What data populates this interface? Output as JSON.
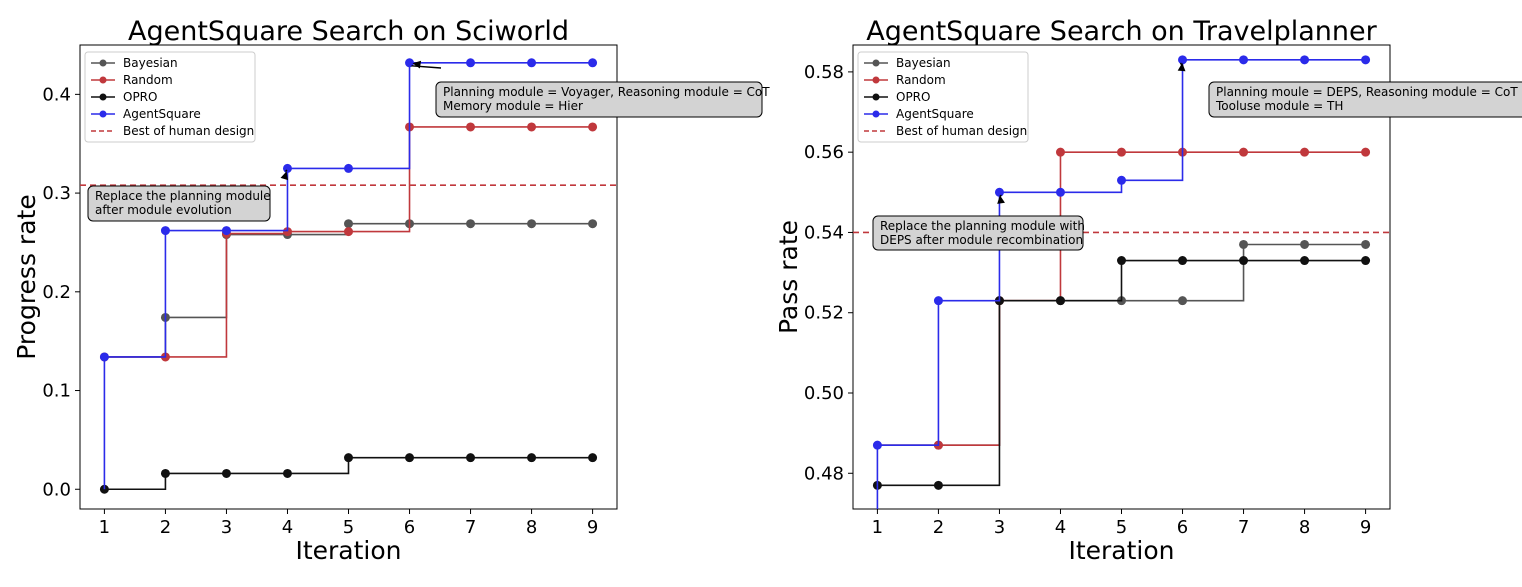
{
  "chart_data": [
    {
      "type": "line",
      "title": "AgentSquare Search on Sciworld",
      "xlabel": "Iteration",
      "ylabel": "Progress rate",
      "xlim": [
        0.6,
        9.4
      ],
      "ylim": [
        -0.02,
        0.45
      ],
      "xticks": [
        "1",
        "2",
        "3",
        "4",
        "5",
        "6",
        "7",
        "8",
        "9"
      ],
      "xtick_values": [
        1,
        2,
        3,
        4,
        5,
        6,
        7,
        8,
        9
      ],
      "yticks": [
        "0.0",
        "0.1",
        "0.2",
        "0.3",
        "0.4"
      ],
      "ytick_values": [
        0.0,
        0.1,
        0.2,
        0.3,
        0.4
      ],
      "grid": false,
      "legend_position": "top-left",
      "series": [
        {
          "name": "Bayesian",
          "color": "#555555",
          "x": [
            2,
            3,
            4,
            5,
            6,
            7,
            8,
            9
          ],
          "y": [
            0.174,
            0.258,
            0.258,
            0.269,
            0.269,
            0.269,
            0.269,
            0.269
          ],
          "step_from": [
            1,
            0.134
          ]
        },
        {
          "name": "Random",
          "color": "#c0383c",
          "x": [
            1,
            2,
            3,
            4,
            5,
            6,
            7,
            8,
            9
          ],
          "y": [
            0.134,
            0.134,
            0.259,
            0.261,
            0.261,
            0.367,
            0.367,
            0.367,
            0.367
          ]
        },
        {
          "name": "OPRO",
          "color": "#111111",
          "x": [
            1,
            2,
            3,
            4,
            5,
            6,
            7,
            8,
            9
          ],
          "y": [
            0.0,
            0.016,
            0.016,
            0.016,
            0.032,
            0.032,
            0.032,
            0.032,
            0.032
          ]
        },
        {
          "name": "AgentSquare",
          "color": "#2b2bea",
          "x": [
            1,
            2,
            3,
            4,
            5,
            6,
            7,
            8,
            9
          ],
          "y": [
            0.134,
            0.262,
            0.262,
            0.325,
            0.325,
            0.432,
            0.432,
            0.432,
            0.432
          ],
          "step_from": [
            1,
            0.0
          ]
        }
      ],
      "reference_line": {
        "name": "Best of human design",
        "value": 0.308,
        "color": "#c0383c"
      },
      "annotations": [
        {
          "lines": [
            "Planning module = Voyager, Reasoning module = CoT",
            "Memory module = Hier"
          ],
          "point": [
            6,
            0.432
          ]
        },
        {
          "lines": [
            "Replace the planning module",
            "after module evolution"
          ],
          "point": [
            4,
            0.325
          ]
        }
      ]
    },
    {
      "type": "line",
      "title": "AgentSquare Search on Travelplanner",
      "xlabel": "Iteration",
      "ylabel": "Pass rate",
      "xlim": [
        0.6,
        9.4
      ],
      "ylim": [
        0.4711,
        0.5867
      ],
      "xticks": [
        "1",
        "2",
        "3",
        "4",
        "5",
        "6",
        "7",
        "8",
        "9"
      ],
      "xtick_values": [
        1,
        2,
        3,
        4,
        5,
        6,
        7,
        8,
        9
      ],
      "yticks": [
        "0.48",
        "0.50",
        "0.52",
        "0.54",
        "0.56",
        "0.58"
      ],
      "ytick_values": [
        0.48,
        0.5,
        0.52,
        0.54,
        0.56,
        0.58
      ],
      "grid": false,
      "legend_position": "top-left",
      "series": [
        {
          "name": "Bayesian",
          "color": "#555555",
          "x": [
            2,
            3,
            4,
            5,
            6,
            7,
            8,
            9
          ],
          "y": [
            0.487,
            0.523,
            0.523,
            0.523,
            0.523,
            0.537,
            0.537,
            0.537
          ],
          "step_from": [
            1,
            0.487
          ]
        },
        {
          "name": "Random",
          "color": "#c0383c",
          "x": [
            2,
            3,
            4,
            5,
            6,
            7,
            8,
            9
          ],
          "y": [
            0.487,
            0.523,
            0.56,
            0.56,
            0.56,
            0.56,
            0.56,
            0.56
          ],
          "step_from": [
            1,
            0.487
          ]
        },
        {
          "name": "OPRO",
          "color": "#111111",
          "x": [
            1,
            2,
            3,
            4,
            5,
            6,
            7,
            8,
            9
          ],
          "y": [
            0.477,
            0.477,
            0.523,
            0.523,
            0.533,
            0.533,
            0.533,
            0.533,
            0.533
          ]
        },
        {
          "name": "AgentSquare",
          "color": "#2b2bea",
          "x": [
            1,
            2,
            3,
            4,
            5,
            6,
            7,
            8,
            9
          ],
          "y": [
            0.487,
            0.523,
            0.55,
            0.55,
            0.553,
            0.583,
            0.583,
            0.583,
            0.583
          ],
          "step_from": [
            1,
            0.4711
          ]
        }
      ],
      "reference_line": {
        "name": "Best of human design",
        "value": 0.54,
        "color": "#c0383c"
      },
      "annotations": [
        {
          "lines": [
            "Planning moule = DEPS, Reasoning module = CoT",
            "Tooluse module = TH"
          ],
          "point": [
            6,
            0.583
          ]
        },
        {
          "lines": [
            "Replace the planning module with",
            "DEPS after module recombination"
          ],
          "point": [
            3,
            0.55
          ]
        }
      ]
    }
  ]
}
